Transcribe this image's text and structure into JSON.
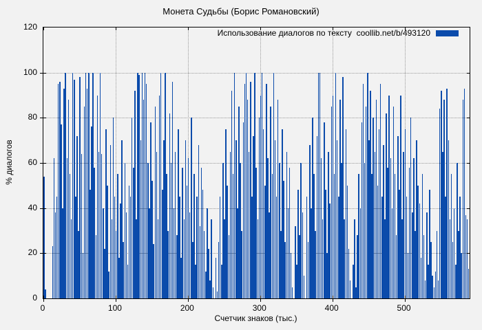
{
  "chart_data": {
    "type": "bar",
    "title": "Монета Судьбы (Борис Романовский)",
    "legend_label": "Использование диалогов по тексту  coollib.net/b/493120",
    "xlabel": "Счетчик знаков (тыс.)",
    "ylabel": "% диалогов",
    "xlim": [
      0,
      590
    ],
    "ylim": [
      0,
      120
    ],
    "x_ticks": [
      0,
      100,
      200,
      300,
      400,
      500
    ],
    "y_ticks": [
      0,
      20,
      40,
      60,
      80,
      100,
      120
    ],
    "grid": true,
    "legend_position": "top-right",
    "colors": {
      "bar": "#0b4bab",
      "grid": "#999999",
      "frame": "#000000",
      "background": "#f2f2f2"
    },
    "x_start": 0,
    "x_step": 2,
    "values": [
      54,
      4,
      0,
      0,
      0,
      0,
      23,
      62,
      38,
      45,
      95,
      96,
      77,
      40,
      93,
      100,
      62,
      88,
      55,
      35,
      100,
      97,
      45,
      72,
      30,
      98,
      64,
      20,
      85,
      100,
      93,
      100,
      48,
      76,
      100,
      58,
      28,
      90,
      65,
      100,
      64,
      40,
      22,
      75,
      50,
      12,
      68,
      35,
      80,
      45,
      30,
      55,
      18,
      42,
      70,
      25,
      60,
      38,
      15,
      50,
      45,
      80,
      58,
      92,
      35,
      100,
      99,
      70,
      100,
      88,
      100,
      95,
      60,
      40,
      78,
      52,
      24,
      85,
      65,
      35,
      90,
      100,
      48,
      70,
      100,
      55,
      30,
      82,
      60,
      96,
      40,
      65,
      28,
      75,
      45,
      18,
      58,
      35,
      70,
      50,
      62,
      38,
      80,
      25,
      55,
      15,
      45,
      68,
      32,
      58,
      48,
      30,
      12,
      40,
      22,
      8,
      35,
      5,
      0,
      18,
      3,
      25,
      45,
      15,
      60,
      35,
      75,
      50,
      28,
      65,
      92,
      55,
      100,
      70,
      40,
      85,
      60,
      30,
      78,
      95,
      100,
      88,
      65,
      96,
      45,
      72,
      100,
      58,
      35,
      80,
      90,
      100,
      75,
      50,
      95,
      62,
      38,
      85,
      55,
      100,
      70,
      45,
      88,
      60,
      30,
      75,
      52,
      25,
      65,
      40,
      58,
      20,
      5,
      0,
      32,
      15,
      48,
      28,
      60,
      38,
      10,
      0,
      45,
      25,
      68,
      40,
      80,
      55,
      30,
      72,
      100,
      100,
      62,
      35,
      78,
      48,
      20,
      65,
      42,
      85,
      90,
      55,
      100,
      70,
      45,
      88,
      60,
      98,
      35,
      75,
      50,
      22,
      8,
      0,
      15,
      35,
      5,
      28,
      55,
      40,
      78,
      95,
      60,
      85,
      100,
      70,
      92,
      55,
      80,
      65,
      88,
      50,
      75,
      95,
      45,
      68,
      35,
      82,
      58,
      90,
      62,
      40,
      85,
      55,
      28,
      72,
      48,
      90,
      35,
      65,
      75,
      45,
      20,
      58,
      80,
      38,
      62,
      30,
      70,
      50,
      42,
      18,
      55,
      28,
      8,
      38,
      15,
      48,
      25,
      10,
      5,
      12,
      30,
      8,
      84,
      92,
      65,
      88,
      45,
      93,
      70,
      35,
      55,
      25,
      40,
      15,
      60,
      30,
      45,
      20,
      88,
      93,
      37,
      35,
      13
    ]
  }
}
